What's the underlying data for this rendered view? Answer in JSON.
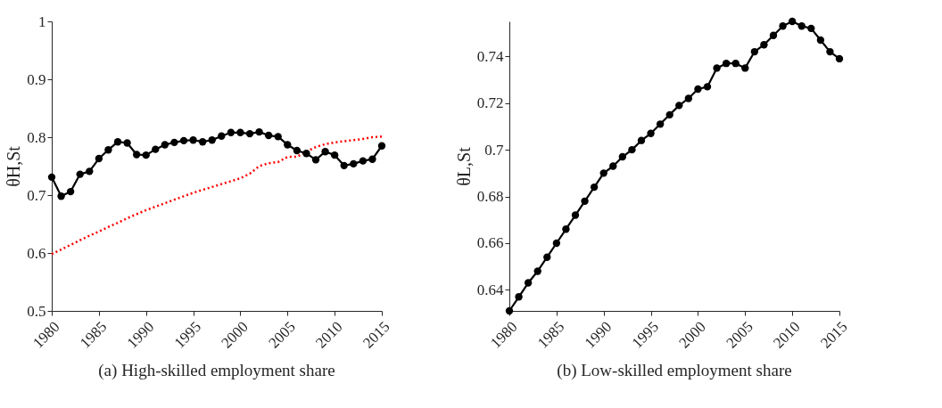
{
  "chart_data": [
    {
      "type": "line",
      "title": "(a) High-skilled employment share",
      "ylabel": "θH,St",
      "grid": false,
      "x": [
        1980,
        1981,
        1982,
        1983,
        1984,
        1985,
        1986,
        1987,
        1988,
        1989,
        1990,
        1991,
        1992,
        1993,
        1994,
        1995,
        1996,
        1997,
        1998,
        1999,
        2000,
        2001,
        2002,
        2003,
        2004,
        2005,
        2006,
        2007,
        2008,
        2009,
        2010,
        2011,
        2012,
        2013,
        2014,
        2015
      ],
      "xlim": [
        1980,
        2015
      ],
      "xticks": [
        1980,
        1985,
        1990,
        1995,
        2000,
        2005,
        2010,
        2015
      ],
      "ylim": [
        0.5,
        1
      ],
      "yticks": [
        0.5,
        0.6,
        0.7,
        0.8,
        0.9,
        1
      ],
      "series": [
        {
          "color": "#ff0000",
          "marker": "none",
          "line_style": "dotted",
          "values": [
            0.598,
            0.606,
            0.614,
            0.622,
            0.63,
            0.637,
            0.645,
            0.652,
            0.66,
            0.667,
            0.674,
            0.68,
            0.686,
            0.692,
            0.698,
            0.704,
            0.709,
            0.714,
            0.719,
            0.724,
            0.729,
            0.737,
            0.75,
            0.755,
            0.757,
            0.766,
            0.766,
            0.775,
            0.783,
            0.788,
            0.791,
            0.793,
            0.795,
            0.797,
            0.8,
            0.801
          ]
        },
        {
          "color": "#000000",
          "marker": "circle",
          "line_style": "solid",
          "values": [
            0.731,
            0.698,
            0.706,
            0.736,
            0.741,
            0.763,
            0.778,
            0.792,
            0.79,
            0.77,
            0.769,
            0.779,
            0.787,
            0.791,
            0.794,
            0.795,
            0.792,
            0.795,
            0.802,
            0.808,
            0.808,
            0.806,
            0.809,
            0.803,
            0.801,
            0.787,
            0.777,
            0.772,
            0.761,
            0.775,
            0.769,
            0.751,
            0.754,
            0.759,
            0.762,
            0.785
          ]
        }
      ]
    },
    {
      "type": "line",
      "title": "(b) Low-skilled employment share",
      "ylabel": "θL,St",
      "grid": false,
      "x": [
        1980,
        1981,
        1982,
        1983,
        1984,
        1985,
        1986,
        1987,
        1988,
        1989,
        1990,
        1991,
        1992,
        1993,
        1994,
        1995,
        1996,
        1997,
        1998,
        1999,
        2000,
        2001,
        2002,
        2003,
        2004,
        2005,
        2006,
        2007,
        2008,
        2009,
        2010,
        2011,
        2012,
        2013,
        2014,
        2015
      ],
      "xlim": [
        1980,
        2015
      ],
      "xticks": [
        1980,
        1985,
        1990,
        1995,
        2000,
        2005,
        2010,
        2015
      ],
      "ylim": [
        0.631,
        0.755
      ],
      "yticks": [
        0.64,
        0.66,
        0.68,
        0.7,
        0.72,
        0.74
      ],
      "series": [
        {
          "color": "#000000",
          "marker": "circle",
          "line_style": "solid",
          "values": [
            0.631,
            0.637,
            0.643,
            0.648,
            0.654,
            0.66,
            0.666,
            0.672,
            0.678,
            0.684,
            0.69,
            0.693,
            0.697,
            0.7,
            0.704,
            0.707,
            0.711,
            0.715,
            0.719,
            0.722,
            0.726,
            0.727,
            0.735,
            0.737,
            0.737,
            0.735,
            0.742,
            0.745,
            0.749,
            0.753,
            0.755,
            0.753,
            0.752,
            0.747,
            0.742,
            0.739
          ]
        }
      ]
    }
  ]
}
